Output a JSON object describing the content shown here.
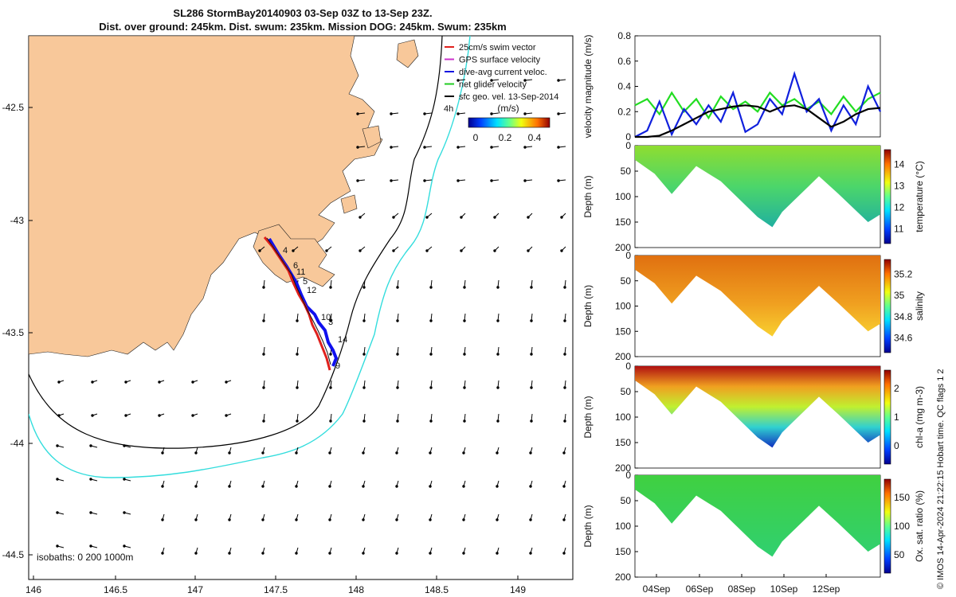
{
  "title_line1": "SL286 StormBay20140903 03-Sep 03Z to 13-Sep 23Z.",
  "title_line2": "Dist. over ground: 245km. Dist. swum: 235km. Mission DOG: 245km. Swum: 235km",
  "legend": {
    "items": [
      {
        "label": "25cm/s swim vector",
        "color": "#e0201c"
      },
      {
        "label": "GPS surface velocity",
        "color": "#cc33cc"
      },
      {
        "label": "dive-avg current veloc.",
        "color": "#1010e0"
      },
      {
        "label": "net glider velocity",
        "color": "#22cc22"
      },
      {
        "label": "sfc geo. vel. 13-Sep-2014",
        "color": "#000000"
      }
    ],
    "colorbar_unit": "(m/s)",
    "colorbar_ticks": [
      "0",
      "0.2",
      "0.4"
    ],
    "annotation": "4h"
  },
  "map": {
    "x_ticks": [
      "146",
      "146.5",
      "147",
      "147.5",
      "148",
      "148.5",
      "149"
    ],
    "y_ticks": [
      "-42.5",
      "-43",
      "-43.5",
      "-44",
      "-44.5"
    ],
    "isobath_label": "isobaths: 0   200  1000m",
    "track_labels": [
      "4",
      "6",
      "11",
      "5",
      "12",
      "10",
      "3",
      "14",
      "9"
    ]
  },
  "colors": {
    "land": "#f8c89a",
    "track_red": "#e0201c",
    "track_blue": "#1010ee",
    "isobath_200": "#000000",
    "isobath_1000": "#33dddd"
  },
  "chart_data": [
    {
      "type": "line",
      "title": "",
      "ylabel": "velocity magnitude (m/s)",
      "ylim": [
        0,
        0.8
      ],
      "yticks": [
        "0",
        "0.2",
        "0.4",
        "0.6",
        "0.8"
      ],
      "series": [
        {
          "color": "#22dd22",
          "x": [
            0,
            0.5,
            1,
            1.5,
            2,
            2.5,
            3,
            3.5,
            4,
            4.5,
            5,
            5.5,
            6,
            6.5,
            7,
            7.5,
            8,
            8.5,
            9,
            9.5,
            10
          ],
          "values": [
            0.25,
            0.3,
            0.18,
            0.35,
            0.2,
            0.3,
            0.15,
            0.32,
            0.22,
            0.28,
            0.2,
            0.35,
            0.25,
            0.3,
            0.22,
            0.28,
            0.18,
            0.32,
            0.2,
            0.3,
            0.35
          ]
        },
        {
          "color": "#1020dd",
          "x": [
            0,
            0.5,
            1,
            1.5,
            2,
            2.5,
            3,
            3.5,
            4,
            4.5,
            5,
            5.5,
            6,
            6.5,
            7,
            7.5,
            8,
            8.5,
            9,
            9.5,
            10
          ],
          "values": [
            0.0,
            0.05,
            0.28,
            0.02,
            0.22,
            0.1,
            0.25,
            0.12,
            0.35,
            0.04,
            0.1,
            0.3,
            0.18,
            0.5,
            0.2,
            0.3,
            0.05,
            0.25,
            0.1,
            0.4,
            0.2
          ]
        },
        {
          "color": "#000000",
          "x": [
            0,
            0.5,
            1,
            1.5,
            2,
            2.5,
            3,
            3.5,
            4,
            4.5,
            5,
            5.5,
            6,
            6.5,
            7,
            7.5,
            8,
            8.5,
            9,
            9.5,
            10
          ],
          "values": [
            0.0,
            0.0,
            0.01,
            0.05,
            0.1,
            0.15,
            0.2,
            0.22,
            0.24,
            0.25,
            0.24,
            0.2,
            0.24,
            0.25,
            0.22,
            0.15,
            0.08,
            0.12,
            0.18,
            0.22,
            0.23
          ]
        }
      ]
    },
    {
      "type": "heatmap",
      "ylabel": "Depth (m)",
      "clabel": "temperature (°C)",
      "ylim": [
        200,
        0
      ],
      "yticks": [
        "0",
        "50",
        "100",
        "150",
        "200"
      ],
      "cticks": [
        "11",
        "12",
        "13",
        "14"
      ],
      "depth_profile": [
        [
          0,
          28
        ],
        [
          0.8,
          55
        ],
        [
          1.5,
          95
        ],
        [
          2.5,
          40
        ],
        [
          3.5,
          70
        ],
        [
          5,
          140
        ],
        [
          5.6,
          160
        ],
        [
          6,
          130
        ],
        [
          7.5,
          60
        ],
        [
          8.3,
          95
        ],
        [
          9.5,
          150
        ],
        [
          10,
          135
        ]
      ]
    },
    {
      "type": "heatmap",
      "ylabel": "Depth (m)",
      "clabel": "salinity",
      "ylim": [
        200,
        0
      ],
      "yticks": [
        "0",
        "50",
        "100",
        "150",
        "200"
      ],
      "cticks": [
        "34.6",
        "34.8",
        "35",
        "35.2"
      ],
      "depth_profile": [
        [
          0,
          28
        ],
        [
          0.8,
          55
        ],
        [
          1.5,
          95
        ],
        [
          2.5,
          40
        ],
        [
          3.5,
          70
        ],
        [
          5,
          140
        ],
        [
          5.6,
          160
        ],
        [
          6,
          130
        ],
        [
          7.5,
          60
        ],
        [
          8.3,
          95
        ],
        [
          9.5,
          150
        ],
        [
          10,
          135
        ]
      ]
    },
    {
      "type": "heatmap",
      "ylabel": "Depth (m)",
      "clabel": "chl-a (mg m-3)",
      "ylim": [
        200,
        0
      ],
      "yticks": [
        "0",
        "50",
        "100",
        "150",
        "200"
      ],
      "cticks": [
        "0",
        "1",
        "2"
      ],
      "depth_profile": [
        [
          0,
          28
        ],
        [
          0.8,
          55
        ],
        [
          1.5,
          95
        ],
        [
          2.5,
          40
        ],
        [
          3.5,
          70
        ],
        [
          5,
          140
        ],
        [
          5.6,
          160
        ],
        [
          6,
          130
        ],
        [
          7.5,
          60
        ],
        [
          8.3,
          95
        ],
        [
          9.5,
          150
        ],
        [
          10,
          135
        ]
      ]
    },
    {
      "type": "heatmap",
      "ylabel": "Depth (m)",
      "clabel": "Ox. sat. ratio (%)",
      "ylim": [
        200,
        0
      ],
      "yticks": [
        "0",
        "50",
        "100",
        "150",
        "200"
      ],
      "cticks": [
        "50",
        "100",
        "150"
      ],
      "xticks": [
        "04Sep",
        "06Sep",
        "08Sep",
        "10Sep",
        "12Sep"
      ],
      "depth_profile": [
        [
          0,
          28
        ],
        [
          0.8,
          55
        ],
        [
          1.5,
          95
        ],
        [
          2.5,
          40
        ],
        [
          3.5,
          70
        ],
        [
          5,
          140
        ],
        [
          5.6,
          160
        ],
        [
          6,
          130
        ],
        [
          7.5,
          60
        ],
        [
          8.3,
          95
        ],
        [
          9.5,
          150
        ],
        [
          10,
          135
        ]
      ]
    }
  ],
  "side_label": "© IMOS 14-Apr-2024 21:22:15 Hobart time. QC flags 1  2"
}
